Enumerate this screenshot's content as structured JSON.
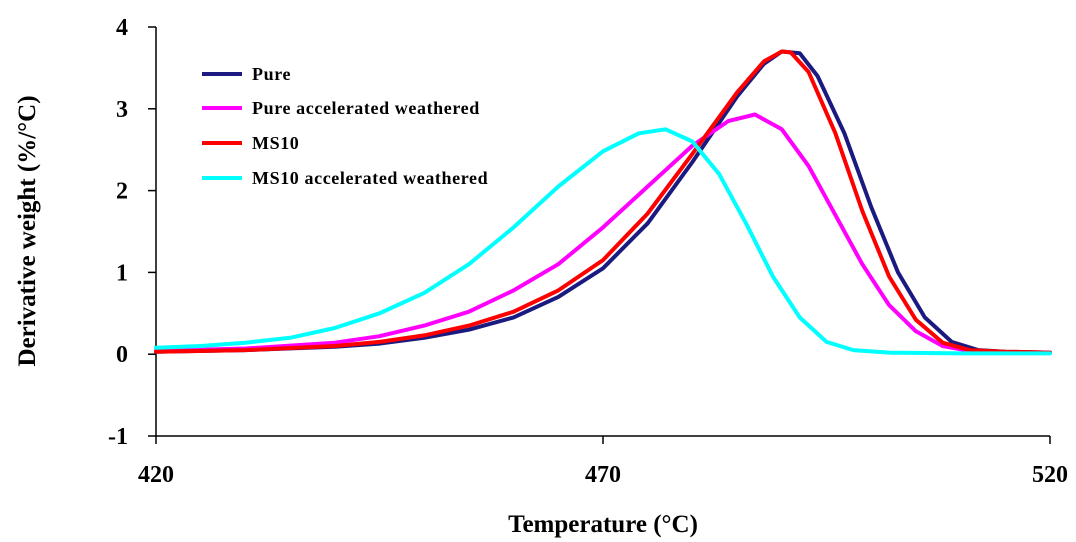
{
  "chart_data": {
    "type": "line",
    "title": "",
    "xlabel": "Temperature (°C)",
    "ylabel": "Derivative weight (%/°C)",
    "xlim": [
      420,
      520
    ],
    "ylim": [
      -1,
      4
    ],
    "x_ticks": [
      "420",
      "470",
      "520"
    ],
    "y_ticks": [
      "-1",
      "0",
      "1",
      "2",
      "3",
      "4"
    ],
    "grid": false,
    "legend_position": "top-left",
    "series": [
      {
        "name": "Pure",
        "color": "#1a1a80",
        "points": [
          [
            420,
            0.03
          ],
          [
            430,
            0.05
          ],
          [
            440,
            0.09
          ],
          [
            445,
            0.13
          ],
          [
            450,
            0.2
          ],
          [
            455,
            0.3
          ],
          [
            460,
            0.45
          ],
          [
            465,
            0.7
          ],
          [
            470,
            1.05
          ],
          [
            475,
            1.6
          ],
          [
            480,
            2.35
          ],
          [
            485,
            3.15
          ],
          [
            488,
            3.55
          ],
          [
            490,
            3.7
          ],
          [
            492,
            3.68
          ],
          [
            494,
            3.4
          ],
          [
            497,
            2.7
          ],
          [
            500,
            1.8
          ],
          [
            503,
            1.0
          ],
          [
            506,
            0.45
          ],
          [
            509,
            0.15
          ],
          [
            512,
            0.05
          ],
          [
            515,
            0.03
          ],
          [
            520,
            0.02
          ]
        ]
      },
      {
        "name": "Pure accelerated weathered",
        "color": "#ff00ff",
        "points": [
          [
            420,
            0.04
          ],
          [
            430,
            0.07
          ],
          [
            440,
            0.14
          ],
          [
            445,
            0.22
          ],
          [
            450,
            0.35
          ],
          [
            455,
            0.52
          ],
          [
            460,
            0.78
          ],
          [
            465,
            1.1
          ],
          [
            470,
            1.55
          ],
          [
            475,
            2.05
          ],
          [
            480,
            2.55
          ],
          [
            484,
            2.85
          ],
          [
            487,
            2.93
          ],
          [
            490,
            2.75
          ],
          [
            493,
            2.3
          ],
          [
            496,
            1.7
          ],
          [
            499,
            1.1
          ],
          [
            502,
            0.6
          ],
          [
            505,
            0.28
          ],
          [
            508,
            0.1
          ],
          [
            511,
            0.04
          ],
          [
            515,
            0.02
          ],
          [
            520,
            0.02
          ]
        ]
      },
      {
        "name": "MS10",
        "color": "#ff0000",
        "points": [
          [
            420,
            0.03
          ],
          [
            430,
            0.05
          ],
          [
            440,
            0.1
          ],
          [
            445,
            0.15
          ],
          [
            450,
            0.23
          ],
          [
            455,
            0.35
          ],
          [
            460,
            0.52
          ],
          [
            465,
            0.78
          ],
          [
            470,
            1.15
          ],
          [
            475,
            1.72
          ],
          [
            480,
            2.45
          ],
          [
            485,
            3.2
          ],
          [
            488,
            3.58
          ],
          [
            490,
            3.7
          ],
          [
            491,
            3.69
          ],
          [
            493,
            3.45
          ],
          [
            496,
            2.7
          ],
          [
            499,
            1.75
          ],
          [
            502,
            0.95
          ],
          [
            505,
            0.42
          ],
          [
            508,
            0.14
          ],
          [
            511,
            0.05
          ],
          [
            515,
            0.03
          ],
          [
            520,
            0.02
          ]
        ]
      },
      {
        "name": "MS10 accelerated weathered",
        "color": "#00ffff",
        "points": [
          [
            420,
            0.08
          ],
          [
            425,
            0.1
          ],
          [
            430,
            0.14
          ],
          [
            435,
            0.2
          ],
          [
            440,
            0.32
          ],
          [
            445,
            0.5
          ],
          [
            450,
            0.75
          ],
          [
            455,
            1.1
          ],
          [
            460,
            1.55
          ],
          [
            465,
            2.05
          ],
          [
            470,
            2.48
          ],
          [
            474,
            2.7
          ],
          [
            477,
            2.75
          ],
          [
            480,
            2.6
          ],
          [
            483,
            2.2
          ],
          [
            486,
            1.6
          ],
          [
            489,
            0.95
          ],
          [
            492,
            0.45
          ],
          [
            495,
            0.15
          ],
          [
            498,
            0.05
          ],
          [
            502,
            0.02
          ],
          [
            510,
            0.01
          ],
          [
            520,
            0.01
          ]
        ]
      }
    ]
  }
}
